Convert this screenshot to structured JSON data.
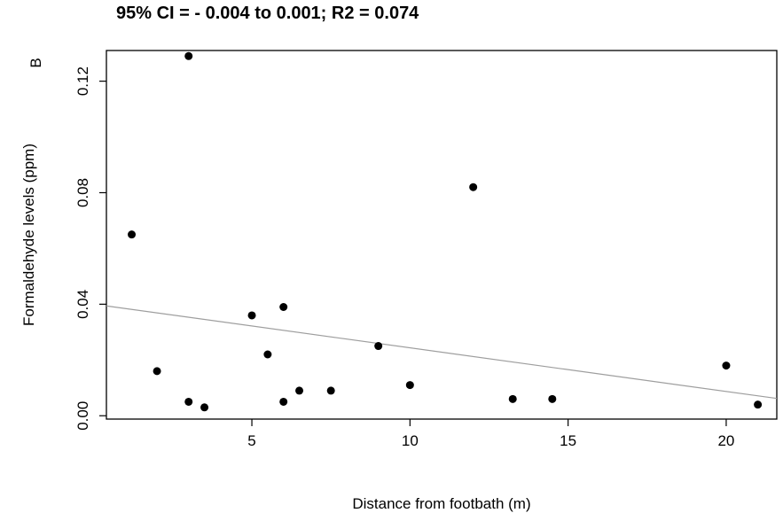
{
  "chart_data": {
    "type": "scatter",
    "title": "95% CI = - 0.004 to 0.001; R2 = 0.074",
    "panel_label": "B",
    "xlabel": "Distance from footbath (m)",
    "ylabel": "Formaldehyde levels (ppm)",
    "xlim": [
      0.4,
      21.6
    ],
    "ylim": [
      -0.0012,
      0.131
    ],
    "xticks": [
      5,
      10,
      15,
      20
    ],
    "xtick_labels": [
      "5",
      "10",
      "15",
      "20"
    ],
    "yticks": [
      0.0,
      0.04,
      0.08,
      0.12
    ],
    "ytick_labels": [
      "0.00",
      "0.04",
      "0.08",
      "0.12"
    ],
    "grid": false,
    "points": [
      {
        "x": 1.2,
        "y": 0.065
      },
      {
        "x": 2.0,
        "y": 0.016
      },
      {
        "x": 3.0,
        "y": 0.129
      },
      {
        "x": 3.0,
        "y": 0.005
      },
      {
        "x": 3.5,
        "y": 0.003
      },
      {
        "x": 5.0,
        "y": 0.036
      },
      {
        "x": 5.5,
        "y": 0.022
      },
      {
        "x": 6.0,
        "y": 0.039
      },
      {
        "x": 6.0,
        "y": 0.005
      },
      {
        "x": 6.5,
        "y": 0.009
      },
      {
        "x": 7.5,
        "y": 0.009
      },
      {
        "x": 9.0,
        "y": 0.025
      },
      {
        "x": 10.0,
        "y": 0.011
      },
      {
        "x": 12.0,
        "y": 0.082
      },
      {
        "x": 13.25,
        "y": 0.006
      },
      {
        "x": 14.5,
        "y": 0.006
      },
      {
        "x": 20.0,
        "y": 0.018
      },
      {
        "x": 21.0,
        "y": 0.004
      }
    ],
    "regression_line": {
      "x": [
        0.4,
        21.6
      ],
      "y": [
        0.0394,
        0.0062
      ]
    },
    "colors": {
      "points": "#000000",
      "regression_line": "#9e9e9e",
      "axes": "#000000"
    }
  }
}
